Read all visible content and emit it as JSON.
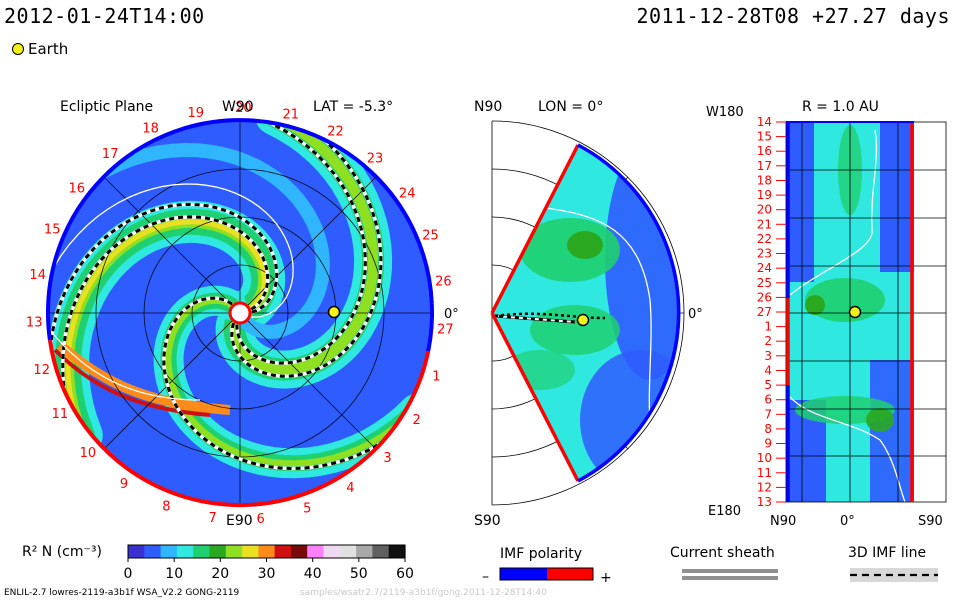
{
  "header": {
    "timestamp_left": "2012-01-24T14:00",
    "timestamp_right": "2011-12-28T08 +27.27 days"
  },
  "legend": {
    "earth_label": "Earth"
  },
  "chart_data": [
    {
      "type": "heatmap",
      "panel": "ecliptic",
      "title": "Ecliptic Plane",
      "top_label": "W90",
      "bottom_label": "E90",
      "right_label": "0°",
      "lat_label": "LAT = -5.3°",
      "carrington_ticks": [
        "20",
        "21",
        "22",
        "23",
        "24",
        "25",
        "26",
        "27",
        "1",
        "2",
        "3",
        "4",
        "5",
        "6",
        "7",
        "8",
        "9",
        "10",
        "11",
        "12",
        "13",
        "14",
        "15",
        "16",
        "17",
        "18",
        "19"
      ]
    },
    {
      "type": "heatmap",
      "panel": "meridional",
      "top_label": "N90",
      "bottom_label": "S90",
      "lon_label": "LON = 0°",
      "right_label": "0°"
    },
    {
      "type": "heatmap",
      "panel": "radial",
      "r_label": "R = 1.0 AU",
      "top_left_label": "W180",
      "bottom_left_label": "E180",
      "x_ticks": [
        "N90",
        "0°",
        "S90"
      ],
      "y_ticks": [
        "14",
        "15",
        "16",
        "17",
        "18",
        "19",
        "20",
        "21",
        "22",
        "23",
        "24",
        "25",
        "26",
        "27",
        "1",
        "2",
        "3",
        "4",
        "5",
        "6",
        "7",
        "8",
        "9",
        "10",
        "11",
        "12",
        "13"
      ]
    }
  ],
  "colorbar": {
    "label": "R² N (cm⁻³)",
    "ticks": [
      "0",
      "10",
      "20",
      "30",
      "40",
      "50",
      "60"
    ],
    "range": [
      0,
      60
    ],
    "colors": [
      "#3a2fd0",
      "#2f5cff",
      "#2fb6ff",
      "#2fe8e0",
      "#1fd070",
      "#2aa820",
      "#8ee020",
      "#e8e020",
      "#ff8c1a",
      "#d01010",
      "#7a0a0a",
      "#ff80ff",
      "#f0d8f0",
      "#e0e0e0",
      "#a8a8a8",
      "#606060",
      "#101010"
    ]
  },
  "imf_polarity": {
    "title": "IMF polarity",
    "minus": "–",
    "plus": "+",
    "neg_color": "#0000ff",
    "pos_color": "#ff0000"
  },
  "current_sheath": {
    "title": "Current sheath"
  },
  "imf_3d": {
    "title": "3D IMF line"
  },
  "footer": {
    "left": "ENLIL-2.7 lowres-2119-a3b1f WSA_V2.2 GONG-2119",
    "right": "samples/wsatr2.7/2119-a3b1f/gong.2011-12-28T14:40"
  }
}
